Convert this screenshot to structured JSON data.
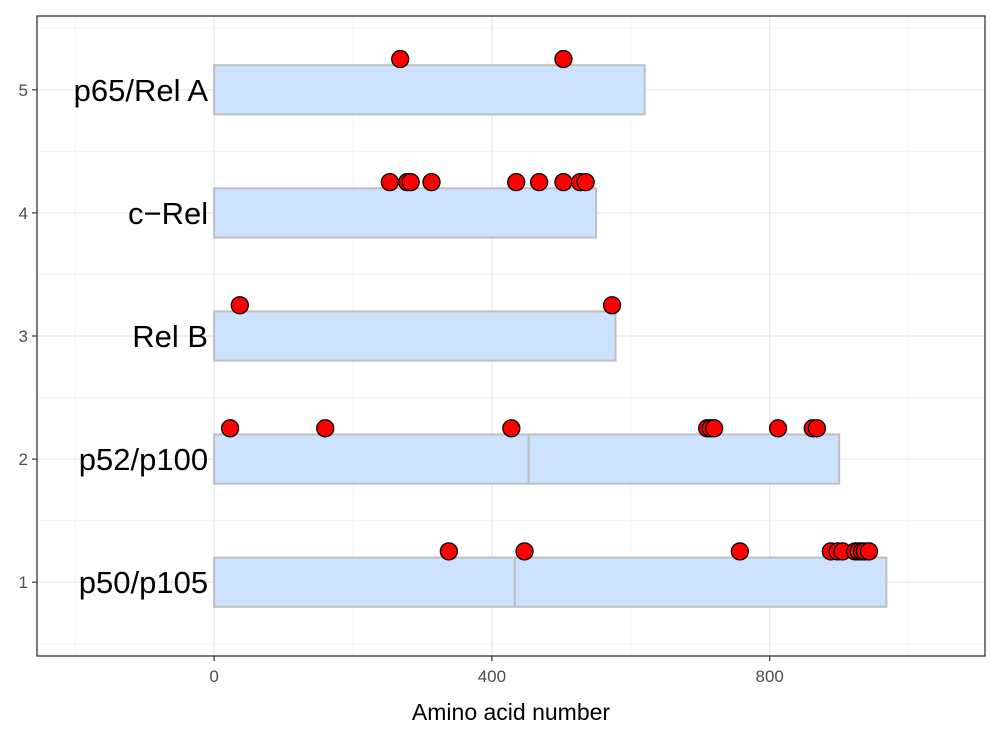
{
  "chart_data": {
    "type": "bar",
    "orientation": "horizontal",
    "xlabel": "Amino acid number",
    "ylabel": "",
    "xlim": [
      -255,
      1110
    ],
    "ylim": [
      0.4,
      5.6
    ],
    "x_ticks": [
      0,
      400,
      800
    ],
    "y_ticks": [
      1,
      2,
      3,
      4,
      5
    ],
    "grid": true,
    "legend": "none",
    "colors": {
      "bar_fill": "#cce2ff",
      "bar_outline": "#bfbfbf",
      "point_fill": "#ff0000",
      "point_outline": "#000000"
    },
    "proteins": [
      {
        "label": "p50/p105",
        "y": 1,
        "length": 968,
        "split": 433,
        "sites": [
          338,
          447,
          757,
          888,
          898,
          905,
          923,
          928,
          933,
          937,
          943
        ]
      },
      {
        "label": "p52/p100",
        "y": 2,
        "length": 900,
        "split": 453,
        "sites": [
          23,
          160,
          428,
          710,
          715,
          720,
          812,
          862,
          868
        ]
      },
      {
        "label": "Rel B",
        "y": 3,
        "length": 578,
        "split": null,
        "sites": [
          37,
          573
        ]
      },
      {
        "label": "c−Rel",
        "y": 4,
        "length": 550,
        "split": null,
        "sites": [
          253,
          278,
          283,
          313,
          435,
          468,
          503,
          527,
          535
        ]
      },
      {
        "label": "p65/Rel A",
        "y": 5,
        "length": 620,
        "split": null,
        "sites": [
          268,
          503
        ]
      }
    ]
  }
}
